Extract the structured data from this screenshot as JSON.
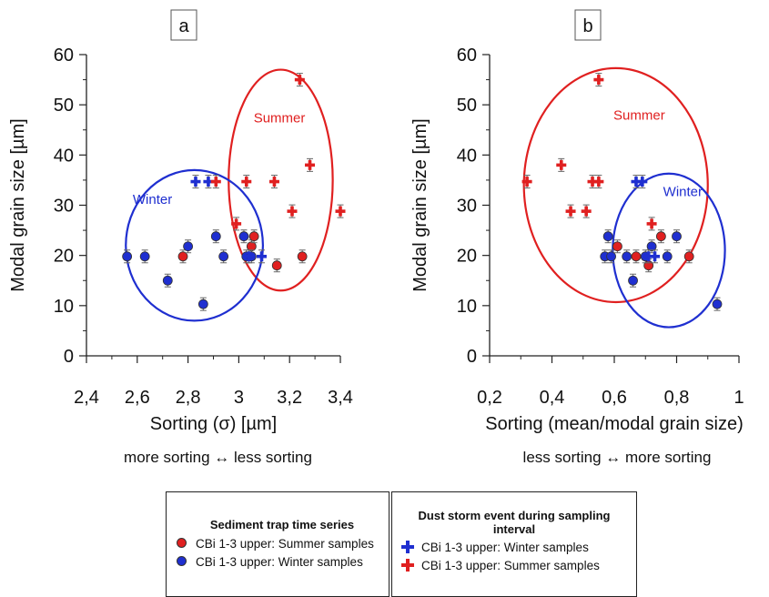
{
  "colors": {
    "summer": "#e02020",
    "winter": "#1f2fd0",
    "axis": "#222222"
  },
  "chart_data": [
    {
      "type": "scatter",
      "panel_label": "a",
      "xlabel": "Sorting (σ) [µm]",
      "ylabel": "Modal grain size [µm]",
      "xlim": [
        2.4,
        3.4
      ],
      "ylim": [
        0,
        60
      ],
      "xticks": [
        "2,4",
        "2,6",
        "2,8",
        "3",
        "3,2",
        "3,4"
      ],
      "yticks": [
        "0",
        "10",
        "20",
        "30",
        "40",
        "50",
        "60"
      ],
      "subtitle": "more sorting  ↔  less sorting",
      "ellipses": [
        {
          "label": "Summer",
          "color": "summer",
          "cx": 3.165,
          "cy": 35.0,
          "rx": 0.205,
          "ry": 22.0
        },
        {
          "label": "Winter",
          "color": "winter",
          "cx": 2.825,
          "cy": 22.0,
          "rx": 0.27,
          "ry": 15.0
        }
      ],
      "series": [
        {
          "name": "CBi 1-3 upper: Summer samples",
          "marker": "circle",
          "color": "summer",
          "points": [
            [
              2.78,
              19.8
            ],
            [
              3.05,
              21.8
            ],
            [
              3.06,
              23.8
            ],
            [
              3.15,
              18.0
            ],
            [
              3.25,
              19.8
            ]
          ]
        },
        {
          "name": "CBi 1-3 upper: Winter samples",
          "marker": "circle",
          "color": "winter",
          "points": [
            [
              2.56,
              19.8
            ],
            [
              2.63,
              19.8
            ],
            [
              2.72,
              15.0
            ],
            [
              2.8,
              21.8
            ],
            [
              2.86,
              10.3
            ],
            [
              2.91,
              23.8
            ],
            [
              2.94,
              19.8
            ],
            [
              3.02,
              23.8
            ],
            [
              3.03,
              19.8
            ],
            [
              3.05,
              19.8
            ]
          ]
        },
        {
          "name": "CBi 1-3 upper: Winter samples",
          "marker": "plus",
          "color": "winter",
          "points": [
            [
              2.83,
              34.7
            ],
            [
              2.88,
              34.7
            ],
            [
              3.04,
              19.8
            ],
            [
              3.09,
              19.8
            ]
          ]
        },
        {
          "name": "CBi 1-3 upper: Summer samples",
          "marker": "plus",
          "color": "summer",
          "points": [
            [
              2.91,
              34.7
            ],
            [
              2.99,
              26.3
            ],
            [
              3.03,
              34.7
            ],
            [
              3.14,
              34.7
            ],
            [
              3.21,
              28.8
            ],
            [
              3.24,
              55.0
            ],
            [
              3.28,
              38.0
            ],
            [
              3.4,
              28.8
            ]
          ]
        }
      ]
    },
    {
      "type": "scatter",
      "panel_label": "b",
      "xlabel": "Sorting (mean/modal grain size)",
      "ylabel": "Modal grain size [µm]",
      "xlim": [
        0.2,
        1.0
      ],
      "ylim": [
        0,
        60
      ],
      "xticks": [
        "0,2",
        "0,4",
        "0,6",
        "0,8",
        "1"
      ],
      "yticks": [
        "0",
        "10",
        "20",
        "30",
        "40",
        "50",
        "60"
      ],
      "subtitle": "less sorting  ↔  more sorting",
      "ellipses": [
        {
          "label": "Summer",
          "color": "summer",
          "cx": 0.605,
          "cy": 34.0,
          "rx": 0.295,
          "ry": 23.3
        },
        {
          "label": "Winter",
          "color": "winter",
          "cx": 0.775,
          "cy": 21.0,
          "rx": 0.18,
          "ry": 15.3
        }
      ],
      "series": [
        {
          "name": "CBi 1-3 upper: Summer samples",
          "marker": "circle",
          "color": "summer",
          "points": [
            [
              0.61,
              21.8
            ],
            [
              0.67,
              19.8
            ],
            [
              0.71,
              18.0
            ],
            [
              0.75,
              23.8
            ],
            [
              0.84,
              19.8
            ]
          ]
        },
        {
          "name": "CBi 1-3 upper: Winter samples",
          "marker": "circle",
          "color": "winter",
          "points": [
            [
              0.57,
              19.8
            ],
            [
              0.58,
              23.8
            ],
            [
              0.59,
              19.8
            ],
            [
              0.64,
              19.8
            ],
            [
              0.66,
              15.0
            ],
            [
              0.7,
              19.8
            ],
            [
              0.72,
              21.8
            ],
            [
              0.77,
              19.8
            ],
            [
              0.8,
              23.8
            ],
            [
              0.93,
              10.3
            ]
          ]
        },
        {
          "name": "CBi 1-3 upper: Winter samples",
          "marker": "plus",
          "color": "winter",
          "points": [
            [
              0.67,
              34.7
            ],
            [
              0.69,
              34.7
            ],
            [
              0.71,
              19.8
            ],
            [
              0.73,
              19.8
            ]
          ]
        },
        {
          "name": "CBi 1-3 upper: Summer samples",
          "marker": "plus",
          "color": "summer",
          "points": [
            [
              0.32,
              34.7
            ],
            [
              0.43,
              38.0
            ],
            [
              0.46,
              28.8
            ],
            [
              0.51,
              28.8
            ],
            [
              0.53,
              34.7
            ],
            [
              0.55,
              34.7
            ],
            [
              0.55,
              55.0
            ],
            [
              0.72,
              26.3
            ]
          ]
        }
      ]
    }
  ],
  "legend": {
    "left": {
      "title": "Sediment trap time series",
      "items": [
        {
          "label": "CBi 1-3 upper: Summer samples",
          "marker": "circle",
          "color": "summer"
        },
        {
          "label": "CBi 1-3 upper: Winter samples",
          "marker": "circle",
          "color": "winter"
        }
      ]
    },
    "right": {
      "title": "Dust storm event during sampling interval",
      "items": [
        {
          "label": "CBi 1-3 upper: Winter samples",
          "marker": "plus",
          "color": "winter"
        },
        {
          "label": "CBi 1-3 upper: Summer samples",
          "marker": "plus",
          "color": "summer"
        }
      ]
    }
  }
}
